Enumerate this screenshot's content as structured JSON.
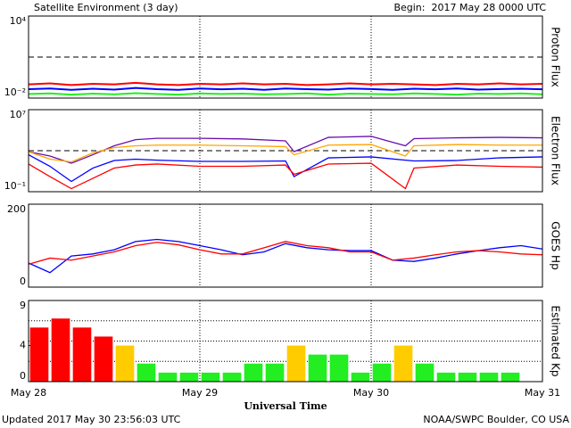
{
  "title": "Satellite Environment (3 day)",
  "begin": "Begin:  2017 May 28 0000 UTC",
  "updated": "Updated 2017 May 30 23:56:03 UTC",
  "credit": "NOAA/SWPC Boulder, CO USA",
  "x_axis": {
    "label": "Universal Time",
    "xlim": [
      0,
      3
    ],
    "xticks": [
      {
        "value": 0,
        "label": "May 28"
      },
      {
        "value": 1,
        "label": "May 29"
      },
      {
        "value": 2,
        "label": "May 30"
      },
      {
        "value": 3,
        "label": "May 31"
      }
    ]
  },
  "chart_data": [
    {
      "type": "line",
      "y_label": "Proton Flux",
      "log_scale": true,
      "ylim": [
        0.01,
        10000
      ],
      "yticks": [
        {
          "value": 10000,
          "label": "10⁴"
        },
        {
          "value": 0.01,
          "label": "10⁻²"
        }
      ],
      "threshold": 10,
      "x": [
        0,
        0.125,
        0.25,
        0.375,
        0.5,
        0.625,
        0.75,
        0.875,
        1,
        1.125,
        1.25,
        1.375,
        1.5,
        1.625,
        1.75,
        1.875,
        2,
        2.125,
        2.25,
        2.375,
        2.5,
        2.625,
        2.75,
        2.875,
        3
      ],
      "series": [
        {
          "name": "P1",
          "color": "#ff0000",
          "values": [
            0.1,
            0.12,
            0.09,
            0.11,
            0.1,
            0.13,
            0.1,
            0.09,
            0.11,
            0.1,
            0.12,
            0.1,
            0.11,
            0.09,
            0.1,
            0.12,
            0.1,
            0.11,
            0.1,
            0.09,
            0.11,
            0.1,
            0.12,
            0.1,
            0.11
          ]
        },
        {
          "name": "P2",
          "color": "#0000ff",
          "values": [
            0.045,
            0.05,
            0.04,
            0.048,
            0.042,
            0.055,
            0.045,
            0.04,
            0.05,
            0.044,
            0.048,
            0.04,
            0.05,
            0.045,
            0.042,
            0.05,
            0.046,
            0.04,
            0.048,
            0.044,
            0.05,
            0.042,
            0.046,
            0.048,
            0.044
          ]
        },
        {
          "name": "P3",
          "color": "#22ee22",
          "values": [
            0.02,
            0.022,
            0.018,
            0.021,
            0.019,
            0.023,
            0.02,
            0.018,
            0.022,
            0.02,
            0.021,
            0.019,
            0.02,
            0.022,
            0.018,
            0.021,
            0.02,
            0.019,
            0.022,
            0.02,
            0.018,
            0.021,
            0.02,
            0.022,
            0.019
          ]
        }
      ]
    },
    {
      "type": "line",
      "y_label": "Electron Flux",
      "log_scale": true,
      "ylim": [
        0.1,
        10000000
      ],
      "yticks": [
        {
          "value": 10000000,
          "label": "10⁷"
        },
        {
          "value": 0.1,
          "label": "10⁻¹"
        }
      ],
      "threshold": 1000,
      "x": [
        0,
        0.125,
        0.25,
        0.375,
        0.5,
        0.625,
        0.75,
        1,
        1.25,
        1.5,
        1.55,
        1.75,
        2,
        2.2,
        2.25,
        2.5,
        2.75,
        3
      ],
      "series": [
        {
          "name": "E1",
          "color": "#6a0dad",
          "values": [
            800,
            300,
            60,
            400,
            3000,
            12000,
            16000,
            16000,
            14000,
            9000,
            800,
            20000,
            25000,
            3000,
            15000,
            18000,
            20000,
            18000
          ]
        },
        {
          "name": "E2",
          "color": "#ffa500",
          "values": [
            800,
            150,
            80,
            600,
            2000,
            3000,
            3500,
            3500,
            3000,
            2500,
            400,
            3500,
            4000,
            300,
            3000,
            4000,
            3500,
            3500
          ]
        },
        {
          "name": "E3",
          "color": "#0000ff",
          "values": [
            400,
            30,
            1,
            20,
            110,
            150,
            120,
            90,
            90,
            100,
            3,
            200,
            250,
            120,
            100,
            110,
            200,
            250
          ]
        },
        {
          "name": "E4",
          "color": "#ff0000",
          "values": [
            50,
            3,
            0.2,
            2,
            20,
            40,
            50,
            30,
            30,
            40,
            5,
            50,
            60,
            0.2,
            20,
            40,
            30,
            25
          ]
        }
      ]
    },
    {
      "type": "line",
      "y_label": "GOES Hp",
      "log_scale": false,
      "ylim": [
        0,
        200
      ],
      "yticks": [
        200,
        0
      ],
      "x": [
        0,
        0.125,
        0.25,
        0.375,
        0.5,
        0.625,
        0.75,
        0.875,
        1,
        1.125,
        1.25,
        1.375,
        1.5,
        1.625,
        1.75,
        1.875,
        2,
        2.125,
        2.25,
        2.375,
        2.5,
        2.625,
        2.75,
        2.875,
        3
      ],
      "series": [
        {
          "name": "G1",
          "color": "#0000ff",
          "values": [
            58,
            35,
            75,
            80,
            90,
            110,
            115,
            110,
            100,
            90,
            78,
            85,
            105,
            95,
            90,
            88,
            88,
            65,
            62,
            70,
            80,
            88,
            95,
            100,
            92
          ]
        },
        {
          "name": "G2",
          "color": "#ff0000",
          "values": [
            55,
            70,
            65,
            75,
            85,
            100,
            108,
            102,
            90,
            80,
            80,
            95,
            110,
            100,
            95,
            85,
            85,
            65,
            70,
            78,
            85,
            88,
            85,
            80,
            78
          ]
        }
      ]
    },
    {
      "type": "bar",
      "y_label": "Estimated Kp",
      "log_scale": false,
      "ylim": [
        0,
        9
      ],
      "yticks": [
        9,
        4,
        0
      ],
      "ygrid": [
        2.25,
        4.5,
        6.75
      ],
      "x": [
        0.0625,
        0.1875,
        0.3125,
        0.4375,
        0.5625,
        0.6875,
        0.8125,
        0.9375,
        1.0625,
        1.1875,
        1.3125,
        1.4375,
        1.5625,
        1.6875,
        1.8125,
        1.9375,
        2.0625,
        2.1875,
        2.3125,
        2.4375,
        2.5625,
        2.6875,
        2.8125
      ],
      "values": [
        6,
        7,
        6,
        5,
        4,
        2,
        1,
        1,
        1,
        1,
        2,
        2,
        4,
        3,
        3,
        1,
        2,
        4,
        2,
        1,
        1,
        1,
        1
      ],
      "colors": [
        "#ff0000",
        "#ff0000",
        "#ff0000",
        "#ff0000",
        "#ffcc00",
        "#22ee22",
        "#22ee22",
        "#22ee22",
        "#22ee22",
        "#22ee22",
        "#22ee22",
        "#22ee22",
        "#ffcc00",
        "#22ee22",
        "#22ee22",
        "#22ee22",
        "#22ee22",
        "#ffcc00",
        "#22ee22",
        "#22ee22",
        "#22ee22",
        "#22ee22",
        "#22ee22"
      ]
    }
  ]
}
